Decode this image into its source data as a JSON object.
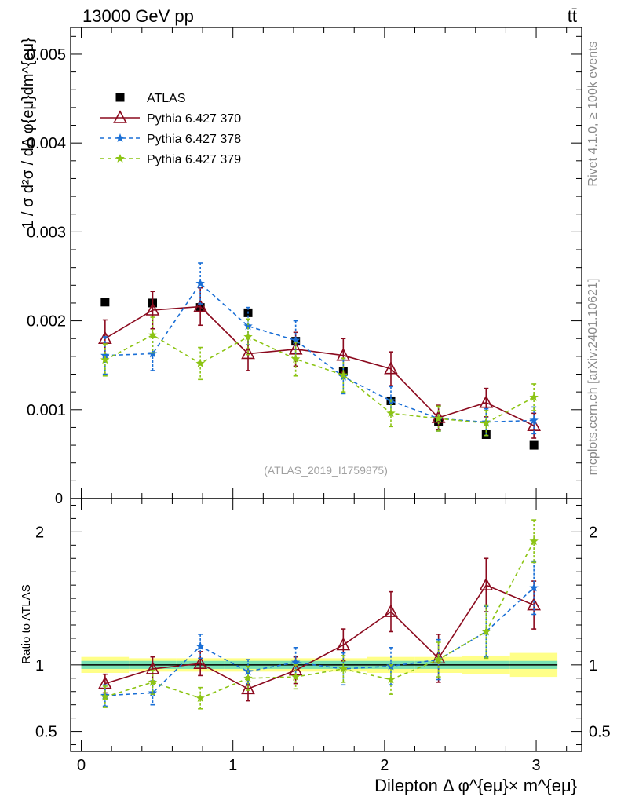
{
  "header": {
    "energy_label": "13000 GeV pp",
    "process_label": "tt̄"
  },
  "side_labels": {
    "rivet": "Rivet 4.1.0, ≥ 100k events",
    "mcplots": "mcplots.cern.ch [arXiv:2401.10621]"
  },
  "watermark": "(ATLAS_2019_I1759875)",
  "chart_data": [
    {
      "type": "scatter",
      "panel": "main",
      "ylabel": "1 / σ  d²σ / dΔ φ{eμ}dm^{eμ}",
      "ylim": [
        0,
        0.0053
      ],
      "xlim": [
        -0.07,
        3.3
      ],
      "yticks": [
        0.001,
        0.002,
        0.003,
        0.004,
        0.005
      ],
      "ytick_labels": [
        "0.001",
        "0.002",
        "0.003",
        "0.004",
        "0.005"
      ],
      "y_zero_label": "0",
      "legend": {
        "position": "top-left",
        "entries": [
          "ATLAS",
          "Pythia 6.427 370",
          "Pythia 6.427 378",
          "Pythia 6.427 379"
        ]
      },
      "x": [
        0.157,
        0.471,
        0.785,
        1.1,
        1.414,
        1.728,
        2.042,
        2.356,
        2.67,
        2.985
      ],
      "series": [
        {
          "name": "ATLAS",
          "color": "#000000",
          "marker": "square",
          "line": "none",
          "values": [
            0.00221,
            0.0022,
            0.00215,
            0.00209,
            0.00177,
            0.00143,
            0.0011,
            0.00087,
            0.00072,
            0.0006
          ],
          "errors": [
            0,
            0,
            0,
            0,
            0,
            0,
            0,
            0,
            0,
            0
          ]
        },
        {
          "name": "Pythia 6.427 370",
          "color": "#8b0a1e",
          "marker": "triangle",
          "line": "solid",
          "values": [
            0.0018,
            0.00212,
            0.00216,
            0.00163,
            0.00168,
            0.00161,
            0.00146,
            0.00091,
            0.00108,
            0.00082
          ],
          "errors": [
            0.00021,
            0.00021,
            0.00021,
            0.00019,
            0.00019,
            0.00019,
            0.00019,
            0.00014,
            0.00016,
            0.00014
          ]
        },
        {
          "name": "Pythia 6.427 378",
          "color": "#1a6fd6",
          "marker": "star",
          "line": "dashed",
          "values": [
            0.00161,
            0.00163,
            0.00242,
            0.00194,
            0.00178,
            0.00137,
            0.0011,
            0.0009,
            0.00086,
            0.00088
          ],
          "errors": [
            0.00021,
            0.00019,
            0.00023,
            0.00021,
            0.00022,
            0.00019,
            0.00016,
            0.00014,
            0.00015,
            0.00015
          ]
        },
        {
          "name": "Pythia 6.427 379",
          "color": "#8cc414",
          "marker": "star",
          "line": "dashed",
          "values": [
            0.00156,
            0.00184,
            0.00152,
            0.00182,
            0.00157,
            0.00139,
            0.00096,
            0.0009,
            0.00085,
            0.00114
          ],
          "errors": [
            0.00018,
            0.0002,
            0.00018,
            0.0002,
            0.00019,
            0.00019,
            0.00015,
            0.00014,
            0.00014,
            0.00015
          ]
        }
      ]
    },
    {
      "type": "scatter",
      "panel": "ratio",
      "ylabel": "Ratio to ATLAS",
      "xlabel": "Dilepton Δ φ^{eμ}× m^{eμ}",
      "ylim": [
        0.35,
        2.25
      ],
      "xlim": [
        -0.07,
        3.3
      ],
      "yticks": [
        0.5,
        1,
        2
      ],
      "ytick_labels": [
        "0.5",
        "1",
        "2"
      ],
      "xticks": [
        0,
        1,
        2,
        3
      ],
      "xtick_labels": [
        "0",
        "1",
        "2",
        "3"
      ],
      "reference_line": 1,
      "uncertainty_band": {
        "stat_color": "#79e2b3",
        "total_color": "#ffff88",
        "inner": [
          0.03,
          0.03,
          0.03,
          0.03,
          0.03,
          0.03,
          0.03,
          0.03,
          0.03,
          0.03
        ],
        "outer": [
          0.06,
          0.05,
          0.05,
          0.05,
          0.05,
          0.05,
          0.06,
          0.06,
          0.07,
          0.09
        ]
      },
      "x": [
        0.157,
        0.471,
        0.785,
        1.1,
        1.414,
        1.728,
        2.042,
        2.356,
        2.67,
        2.985
      ],
      "series": [
        {
          "name": "Pythia 6.427 370",
          "color": "#8b0a1e",
          "marker": "triangle",
          "line": "solid",
          "values": [
            0.86,
            0.97,
            1.01,
            0.82,
            0.96,
            1.15,
            1.4,
            1.05,
            1.6,
            1.45
          ],
          "errors": [
            0.07,
            0.09,
            0.09,
            0.09,
            0.1,
            0.12,
            0.15,
            0.18,
            0.2,
            0.18
          ]
        },
        {
          "name": "Pythia 6.427 378",
          "color": "#1a6fd6",
          "marker": "star",
          "line": "dashed",
          "values": [
            0.77,
            0.79,
            1.14,
            0.95,
            1.02,
            0.97,
            0.99,
            1.04,
            1.25,
            1.58
          ],
          "errors": [
            0.08,
            0.09,
            0.09,
            0.09,
            0.11,
            0.12,
            0.14,
            0.15,
            0.19,
            0.2
          ]
        },
        {
          "name": "Pythia 6.427 379",
          "color": "#8cc414",
          "marker": "star",
          "line": "dashed",
          "values": [
            0.76,
            0.87,
            0.75,
            0.9,
            0.91,
            0.97,
            0.89,
            1.04,
            1.25,
            1.93
          ],
          "errors": [
            0.08,
            0.09,
            0.08,
            0.09,
            0.09,
            0.1,
            0.11,
            0.13,
            0.2,
            0.16
          ]
        }
      ]
    }
  ]
}
